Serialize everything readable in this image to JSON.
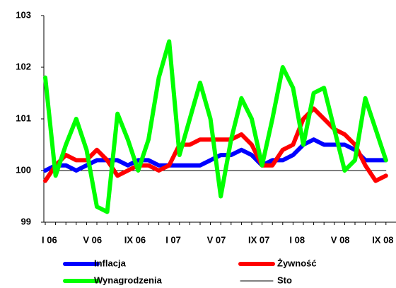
{
  "chart_data": {
    "type": "line",
    "categories": [
      "I 06",
      null,
      null,
      null,
      "V 06",
      null,
      null,
      null,
      "IX 06",
      null,
      null,
      null,
      "I 07",
      null,
      null,
      null,
      "V 07",
      null,
      null,
      null,
      "IX 07",
      null,
      null,
      null,
      "I 08",
      null,
      null,
      null,
      "V 08",
      null,
      null,
      null,
      "IX 08",
      null
    ],
    "series": [
      {
        "name": "Inflacja",
        "color": "#0000ff",
        "values": [
          100.0,
          100.1,
          100.1,
          100.0,
          100.1,
          100.2,
          100.2,
          100.2,
          100.1,
          100.2,
          100.2,
          100.1,
          100.1,
          100.1,
          100.1,
          100.1,
          100.2,
          100.3,
          100.3,
          100.4,
          100.3,
          100.1,
          100.2,
          100.2,
          100.3,
          100.5,
          100.6,
          100.5,
          100.5,
          100.5,
          100.4,
          100.2,
          100.2,
          100.2
        ]
      },
      {
        "name": "Żywność",
        "color": "#ff0000",
        "values": [
          99.8,
          100.1,
          100.3,
          100.2,
          100.2,
          100.4,
          100.2,
          99.9,
          100.0,
          100.1,
          100.1,
          100.0,
          100.1,
          100.5,
          100.5,
          100.6,
          100.6,
          100.6,
          100.6,
          100.7,
          100.5,
          100.1,
          100.1,
          100.4,
          100.5,
          101.0,
          101.2,
          101.0,
          100.8,
          100.7,
          100.5,
          100.1,
          99.8,
          99.9
        ]
      },
      {
        "name": "Wynagrodzenia",
        "color": "#00ff00",
        "values": [
          101.8,
          99.9,
          100.5,
          101.0,
          100.4,
          99.3,
          99.2,
          101.1,
          100.6,
          100.0,
          100.6,
          101.8,
          102.5,
          100.3,
          101.0,
          101.7,
          101.0,
          99.5,
          100.6,
          101.4,
          101.0,
          100.1,
          101.0,
          102.0,
          101.6,
          100.5,
          101.5,
          101.6,
          100.8,
          100.0,
          100.2,
          101.4,
          100.8,
          100.2
        ]
      },
      {
        "name": "Sto",
        "color": "#000000",
        "values": [
          100,
          100,
          100,
          100,
          100,
          100,
          100,
          100,
          100,
          100,
          100,
          100,
          100,
          100,
          100,
          100,
          100,
          100,
          100,
          100,
          100,
          100,
          100,
          100,
          100,
          100,
          100,
          100,
          100,
          100,
          100,
          100,
          100,
          100
        ]
      }
    ],
    "ylim": [
      99,
      103
    ],
    "yticks": [
      99,
      100,
      101,
      102,
      103
    ],
    "grid": false
  }
}
